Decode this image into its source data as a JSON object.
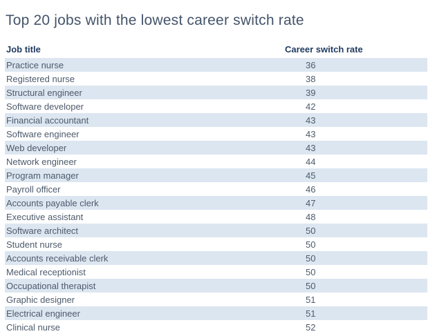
{
  "page": {
    "title": "Top 20 jobs with the lowest career switch rate"
  },
  "table": {
    "columns": [
      {
        "label": "Job title"
      },
      {
        "label": "Career switch rate"
      }
    ],
    "rows": [
      {
        "job": "Practice nurse",
        "rate": "36"
      },
      {
        "job": "Registered nurse",
        "rate": "38"
      },
      {
        "job": "Structural engineer",
        "rate": "39"
      },
      {
        "job": "Software developer",
        "rate": "42"
      },
      {
        "job": "Financial accountant",
        "rate": "43"
      },
      {
        "job": "Software engineer",
        "rate": "43"
      },
      {
        "job": "Web developer",
        "rate": "43"
      },
      {
        "job": "Network engineer",
        "rate": "44"
      },
      {
        "job": "Program manager",
        "rate": "45"
      },
      {
        "job": "Payroll officer",
        "rate": "46"
      },
      {
        "job": "Accounts payable clerk",
        "rate": "47"
      },
      {
        "job": "Executive assistant",
        "rate": "48"
      },
      {
        "job": "Software architect",
        "rate": "50"
      },
      {
        "job": "Student nurse",
        "rate": "50"
      },
      {
        "job": "Accounts receivable clerk",
        "rate": "50"
      },
      {
        "job": "Medical receptionist",
        "rate": "50"
      },
      {
        "job": "Occupational therapist",
        "rate": "50"
      },
      {
        "job": "Graphic designer",
        "rate": "51"
      },
      {
        "job": "Electrical engineer",
        "rate": "51"
      },
      {
        "job": "Clinical nurse",
        "rate": "52"
      }
    ]
  },
  "chart_data": {
    "type": "table",
    "title": "Top 20 jobs with the lowest career switch rate",
    "columns": [
      "Job title",
      "Career switch rate"
    ],
    "categories": [
      "Practice nurse",
      "Registered nurse",
      "Structural engineer",
      "Software developer",
      "Financial accountant",
      "Software engineer",
      "Web developer",
      "Network engineer",
      "Program manager",
      "Payroll officer",
      "Accounts payable clerk",
      "Executive assistant",
      "Software architect",
      "Student nurse",
      "Accounts receivable clerk",
      "Medical receptionist",
      "Occupational therapist",
      "Graphic designer",
      "Electrical engineer",
      "Clinical nurse"
    ],
    "values": [
      36,
      38,
      39,
      42,
      43,
      43,
      43,
      44,
      45,
      46,
      47,
      48,
      50,
      50,
      50,
      50,
      50,
      51,
      51,
      52
    ],
    "layout": {
      "striped_rows": true,
      "stripe_starts_on_first_row": true,
      "sort": "ascending by rate"
    }
  },
  "colors": {
    "background": "#FFFFFF",
    "title_text": "#44546A",
    "header_text": "#1F3A5F",
    "row_text": "#4D5A6B",
    "stripe_background": "#DCE6F1"
  }
}
